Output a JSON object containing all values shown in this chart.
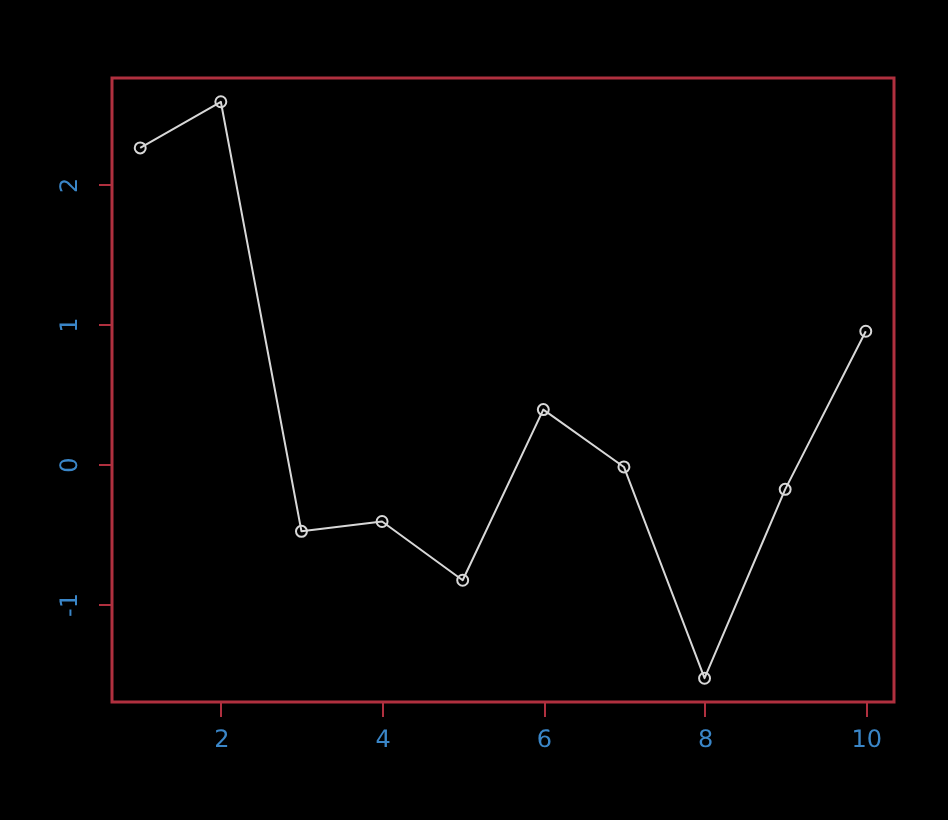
{
  "chart_data": {
    "type": "line",
    "x": [
      1,
      2,
      3,
      4,
      5,
      6,
      7,
      8,
      9,
      10
    ],
    "series": [
      {
        "color": "#d8d8d8",
        "values": [
          2.26,
          2.59,
          -0.48,
          -0.41,
          -0.83,
          0.39,
          -0.02,
          -1.53,
          -0.18,
          0.95
        ]
      }
    ],
    "xlim": [
      0.65,
      10.35
    ],
    "ylim": [
      -1.7,
      2.76
    ],
    "xticks": [
      2,
      4,
      6,
      8,
      10
    ],
    "yticks": [
      -1,
      0,
      1,
      2
    ],
    "marker": "circle",
    "line_style": "solid",
    "grid": false
  }
}
